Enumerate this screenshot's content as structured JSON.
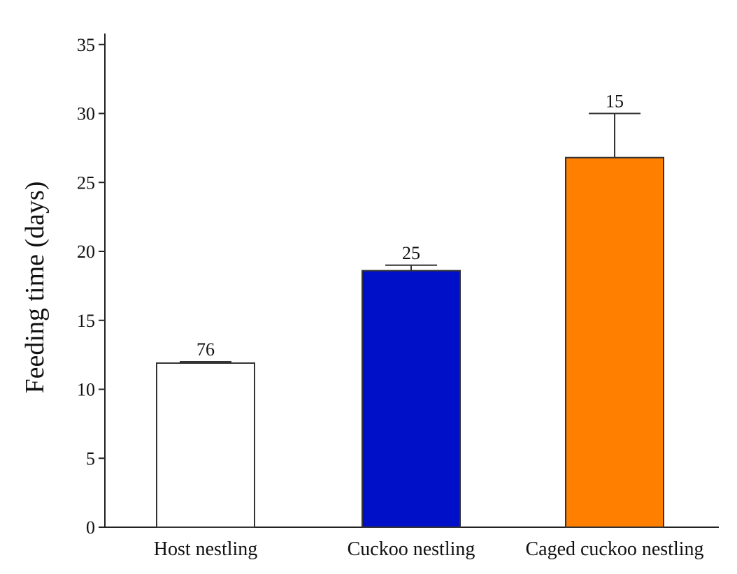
{
  "chart_data": {
    "type": "bar",
    "title": "",
    "xlabel": "",
    "ylabel": "Feeding time (days)",
    "ylim": [
      0,
      36
    ],
    "yticks": [
      0,
      5,
      10,
      15,
      20,
      25,
      30,
      35
    ],
    "categories": [
      "Host nestling",
      "Cuckoo nestling",
      "Caged cuckoo nestling"
    ],
    "values": [
      11.9,
      18.6,
      26.8
    ],
    "error_upper": [
      12.0,
      19.0,
      30.0
    ],
    "sample_sizes": [
      "76",
      "25",
      "15"
    ],
    "colors": [
      "#ffffff",
      "#0010c8",
      "#ff7f00"
    ],
    "grid": false,
    "legend": "none"
  }
}
